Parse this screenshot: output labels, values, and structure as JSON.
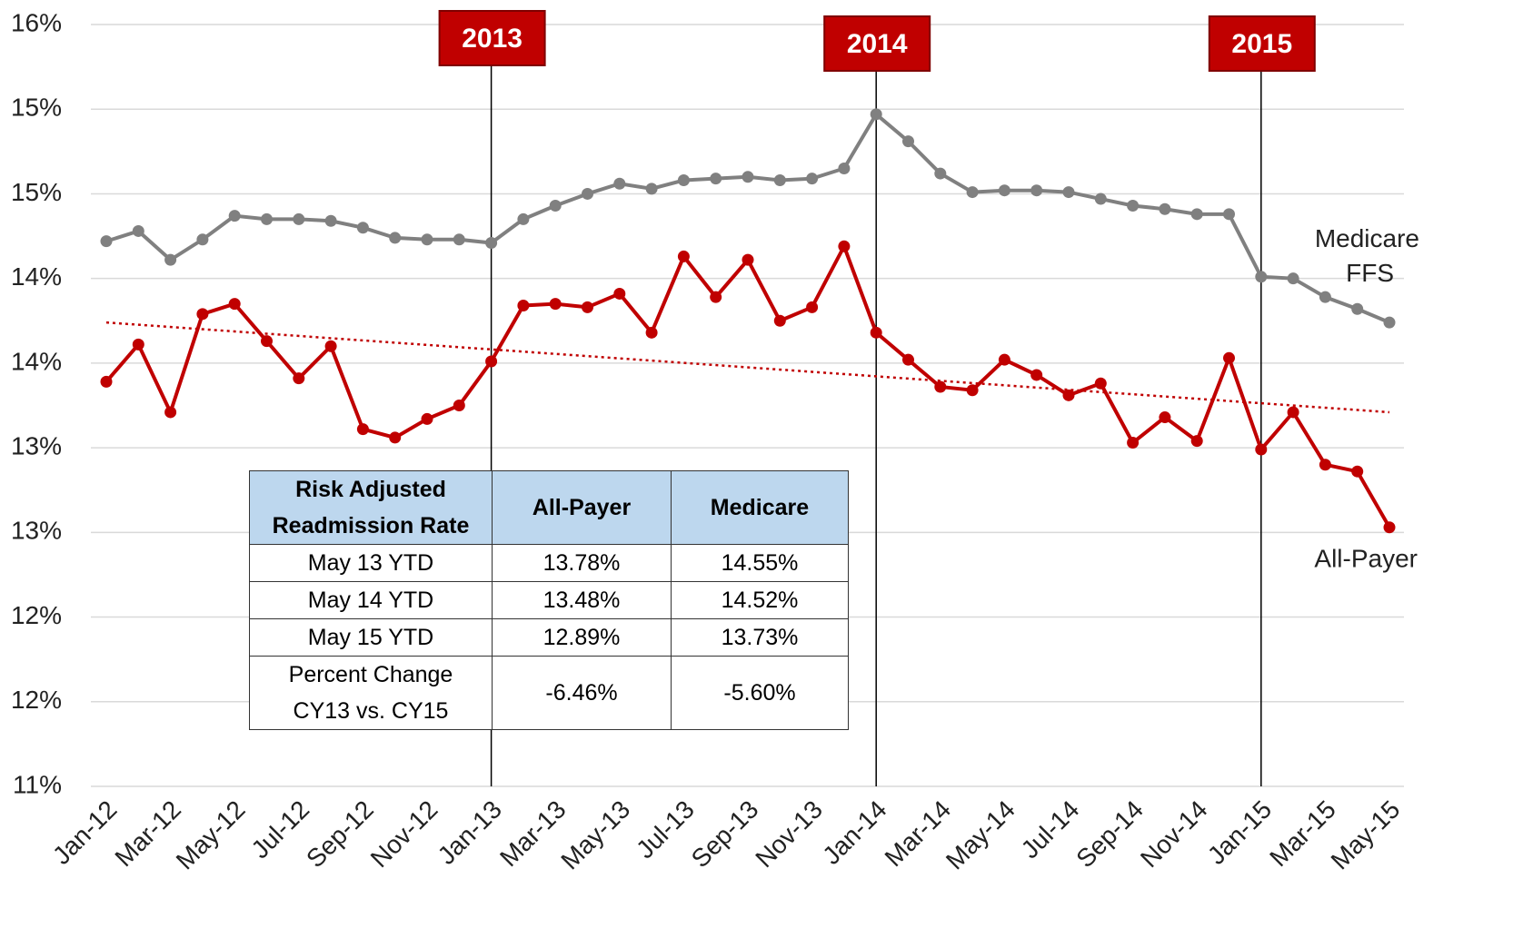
{
  "chart_data": {
    "type": "line",
    "categories": [
      "Jan-12",
      null,
      "Mar-12",
      null,
      "May-12",
      null,
      "Jul-12",
      null,
      "Sep-12",
      null,
      "Nov-12",
      null,
      "Jan-13",
      null,
      "Mar-13",
      null,
      "May-13",
      null,
      "Jul-13",
      null,
      "Sep-13",
      null,
      "Nov-13",
      null,
      "Jan-14",
      null,
      "Mar-14",
      null,
      "May-14",
      null,
      "Jul-14",
      null,
      "Sep-14",
      null,
      "Nov-14",
      null,
      "Jan-15",
      null,
      "Mar-15",
      null,
      "May-15"
    ],
    "series": [
      {
        "name": "Medicare FFS",
        "color": "#808080",
        "values": [
          14.22,
          14.28,
          14.11,
          14.23,
          14.37,
          14.35,
          14.35,
          14.34,
          14.3,
          14.24,
          14.23,
          14.23,
          14.21,
          14.35,
          14.43,
          14.5,
          14.56,
          14.53,
          14.58,
          14.59,
          14.6,
          14.58,
          14.59,
          14.65,
          14.97,
          14.81,
          14.62,
          14.51,
          14.52,
          14.52,
          14.51,
          14.47,
          14.43,
          14.41,
          14.38,
          14.38,
          14.01,
          14.0,
          13.89,
          13.82,
          13.74
        ]
      },
      {
        "name": "All-Payer",
        "color": "#c00000",
        "values": [
          13.39,
          13.61,
          13.21,
          13.79,
          13.85,
          13.63,
          13.41,
          13.6,
          13.11,
          13.06,
          13.17,
          13.25,
          13.51,
          13.84,
          13.85,
          13.83,
          13.91,
          13.68,
          14.13,
          13.89,
          14.11,
          13.75,
          13.83,
          14.19,
          13.68,
          13.52,
          13.36,
          13.34,
          13.52,
          13.43,
          13.31,
          13.38,
          13.03,
          13.18,
          13.04,
          13.53,
          12.99,
          13.21,
          12.9,
          12.86,
          12.53
        ]
      }
    ],
    "trendline": {
      "start": 13.74,
      "end": 13.21,
      "color": "#c00000"
    },
    "ylim": [
      11,
      15.5
    ],
    "yticks": [
      {
        "value": 11,
        "label": "11%"
      },
      {
        "value": 11.5,
        "label": "12%"
      },
      {
        "value": 12,
        "label": "12%"
      },
      {
        "value": 12.5,
        "label": "13%"
      },
      {
        "value": 13,
        "label": "13%"
      },
      {
        "value": 13.5,
        "label": "14%"
      },
      {
        "value": 14,
        "label": "14%"
      },
      {
        "value": 14.5,
        "label": "15%"
      },
      {
        "value": 15,
        "label": "15%"
      },
      {
        "value": 15.5,
        "label": "16%"
      }
    ],
    "grid": true,
    "annotations": [
      {
        "label": "2013",
        "at": "Jan-13"
      },
      {
        "label": "2014",
        "at": "Jan-14"
      },
      {
        "label": "2015",
        "at": "Jan-15"
      }
    ],
    "table": {
      "header": [
        "Risk Adjusted Readmission Rate",
        "All-Payer",
        "Medicare"
      ],
      "rows": [
        [
          "May 13 YTD",
          "13.78%",
          "14.55%"
        ],
        [
          "May 14 YTD",
          "13.48%",
          "14.52%"
        ],
        [
          "May 15 YTD",
          "12.89%",
          "13.73%"
        ],
        [
          "Percent Change CY13 vs. CY15",
          "-6.46%",
          "-5.60%"
        ]
      ]
    }
  }
}
